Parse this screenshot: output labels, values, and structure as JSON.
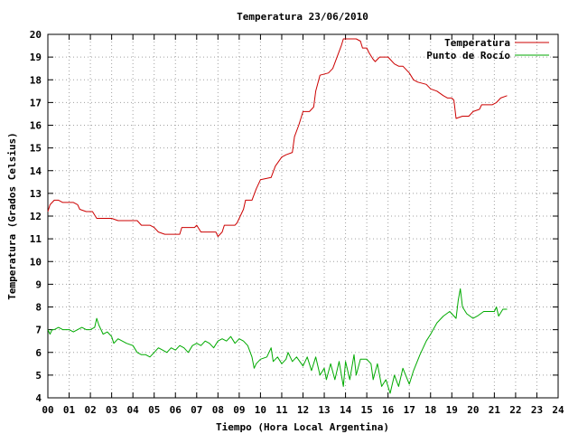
{
  "chart_data": {
    "type": "line",
    "title": "Temperatura 23/06/2010",
    "xlabel": "Tiempo (Hora Local Argentina)",
    "ylabel": "Temperatura (Grados Celsius)",
    "xlim": [
      0,
      24
    ],
    "ylim": [
      4,
      20
    ],
    "grid": true,
    "legend_position": "top-right",
    "x_tick_labels": [
      "00",
      "01",
      "02",
      "03",
      "04",
      "05",
      "06",
      "07",
      "08",
      "09",
      "10",
      "11",
      "12",
      "13",
      "14",
      "15",
      "16",
      "17",
      "18",
      "19",
      "20",
      "21",
      "22",
      "23",
      "24"
    ],
    "y_tick_labels": [
      "4",
      "5",
      "6",
      "7",
      "8",
      "9",
      "10",
      "11",
      "12",
      "13",
      "14",
      "15",
      "16",
      "17",
      "18",
      "19",
      "20"
    ],
    "series": [
      {
        "name": "Temperatura",
        "color": "#cc0000",
        "points": [
          [
            0.0,
            12.2
          ],
          [
            0.1,
            12.5
          ],
          [
            0.3,
            12.7
          ],
          [
            0.5,
            12.7
          ],
          [
            0.7,
            12.6
          ],
          [
            1.0,
            12.6
          ],
          [
            1.2,
            12.6
          ],
          [
            1.4,
            12.5
          ],
          [
            1.5,
            12.3
          ],
          [
            1.8,
            12.2
          ],
          [
            2.1,
            12.2
          ],
          [
            2.3,
            11.9
          ],
          [
            2.5,
            11.9
          ],
          [
            3.0,
            11.9
          ],
          [
            3.3,
            11.8
          ],
          [
            3.6,
            11.8
          ],
          [
            4.0,
            11.8
          ],
          [
            4.2,
            11.8
          ],
          [
            4.4,
            11.6
          ],
          [
            4.8,
            11.6
          ],
          [
            5.0,
            11.5
          ],
          [
            5.2,
            11.3
          ],
          [
            5.5,
            11.2
          ],
          [
            5.9,
            11.2
          ],
          [
            6.2,
            11.2
          ],
          [
            6.3,
            11.5
          ],
          [
            6.9,
            11.5
          ],
          [
            7.0,
            11.6
          ],
          [
            7.2,
            11.3
          ],
          [
            7.5,
            11.3
          ],
          [
            7.9,
            11.3
          ],
          [
            8.0,
            11.1
          ],
          [
            8.2,
            11.3
          ],
          [
            8.3,
            11.6
          ],
          [
            8.8,
            11.6
          ],
          [
            8.9,
            11.7
          ],
          [
            9.2,
            12.3
          ],
          [
            9.3,
            12.7
          ],
          [
            9.6,
            12.7
          ],
          [
            9.8,
            13.2
          ],
          [
            10.0,
            13.6
          ],
          [
            10.5,
            13.7
          ],
          [
            10.7,
            14.2
          ],
          [
            11.0,
            14.6
          ],
          [
            11.2,
            14.7
          ],
          [
            11.5,
            14.8
          ],
          [
            11.6,
            15.5
          ],
          [
            11.8,
            16.0
          ],
          [
            12.0,
            16.6
          ],
          [
            12.3,
            16.6
          ],
          [
            12.5,
            16.8
          ],
          [
            12.6,
            17.5
          ],
          [
            12.8,
            18.2
          ],
          [
            13.2,
            18.3
          ],
          [
            13.4,
            18.5
          ],
          [
            13.6,
            19.0
          ],
          [
            13.8,
            19.5
          ],
          [
            13.9,
            19.8
          ],
          [
            14.5,
            19.8
          ],
          [
            14.7,
            19.7
          ],
          [
            14.8,
            19.4
          ],
          [
            15.0,
            19.4
          ],
          [
            15.1,
            19.2
          ],
          [
            15.3,
            18.9
          ],
          [
            15.4,
            18.8
          ],
          [
            15.6,
            19.0
          ],
          [
            16.0,
            19.0
          ],
          [
            16.1,
            18.9
          ],
          [
            16.3,
            18.7
          ],
          [
            16.5,
            18.6
          ],
          [
            16.7,
            18.6
          ],
          [
            17.0,
            18.3
          ],
          [
            17.2,
            18.0
          ],
          [
            17.4,
            17.9
          ],
          [
            17.8,
            17.8
          ],
          [
            18.0,
            17.6
          ],
          [
            18.3,
            17.5
          ],
          [
            18.6,
            17.3
          ],
          [
            18.8,
            17.2
          ],
          [
            19.0,
            17.2
          ],
          [
            19.1,
            17.1
          ],
          [
            19.2,
            16.3
          ],
          [
            19.5,
            16.4
          ],
          [
            19.8,
            16.4
          ],
          [
            20.0,
            16.6
          ],
          [
            20.3,
            16.7
          ],
          [
            20.4,
            16.9
          ],
          [
            20.9,
            16.9
          ],
          [
            21.1,
            17.0
          ],
          [
            21.3,
            17.2
          ],
          [
            21.6,
            17.3
          ]
        ]
      },
      {
        "name": "Punto de Rocío",
        "color": "#00aa00",
        "points": [
          [
            0.0,
            7.0
          ],
          [
            0.1,
            6.8
          ],
          [
            0.2,
            7.0
          ],
          [
            0.3,
            7.0
          ],
          [
            0.5,
            7.1
          ],
          [
            0.7,
            7.0
          ],
          [
            1.0,
            7.0
          ],
          [
            1.2,
            6.9
          ],
          [
            1.4,
            7.0
          ],
          [
            1.6,
            7.1
          ],
          [
            1.8,
            7.0
          ],
          [
            2.0,
            7.0
          ],
          [
            2.2,
            7.1
          ],
          [
            2.3,
            7.5
          ],
          [
            2.4,
            7.2
          ],
          [
            2.6,
            6.8
          ],
          [
            2.8,
            6.9
          ],
          [
            3.0,
            6.7
          ],
          [
            3.1,
            6.4
          ],
          [
            3.3,
            6.6
          ],
          [
            3.5,
            6.5
          ],
          [
            3.7,
            6.4
          ],
          [
            4.0,
            6.3
          ],
          [
            4.2,
            6.0
          ],
          [
            4.4,
            5.9
          ],
          [
            4.6,
            5.9
          ],
          [
            4.8,
            5.8
          ],
          [
            5.0,
            6.0
          ],
          [
            5.2,
            6.2
          ],
          [
            5.4,
            6.1
          ],
          [
            5.6,
            6.0
          ],
          [
            5.8,
            6.2
          ],
          [
            6.0,
            6.1
          ],
          [
            6.2,
            6.3
          ],
          [
            6.4,
            6.2
          ],
          [
            6.6,
            6.0
          ],
          [
            6.8,
            6.3
          ],
          [
            7.0,
            6.4
          ],
          [
            7.2,
            6.3
          ],
          [
            7.4,
            6.5
          ],
          [
            7.6,
            6.4
          ],
          [
            7.8,
            6.2
          ],
          [
            8.0,
            6.5
          ],
          [
            8.2,
            6.6
          ],
          [
            8.4,
            6.5
          ],
          [
            8.6,
            6.7
          ],
          [
            8.8,
            6.4
          ],
          [
            9.0,
            6.6
          ],
          [
            9.2,
            6.5
          ],
          [
            9.4,
            6.3
          ],
          [
            9.6,
            5.8
          ],
          [
            9.7,
            5.3
          ],
          [
            9.8,
            5.5
          ],
          [
            10.0,
            5.7
          ],
          [
            10.3,
            5.8
          ],
          [
            10.5,
            6.2
          ],
          [
            10.6,
            5.6
          ],
          [
            10.8,
            5.8
          ],
          [
            11.0,
            5.5
          ],
          [
            11.2,
            5.7
          ],
          [
            11.3,
            6.0
          ],
          [
            11.5,
            5.6
          ],
          [
            11.7,
            5.8
          ],
          [
            12.0,
            5.4
          ],
          [
            12.2,
            5.8
          ],
          [
            12.4,
            5.2
          ],
          [
            12.6,
            5.8
          ],
          [
            12.8,
            5.0
          ],
          [
            13.0,
            5.3
          ],
          [
            13.1,
            4.8
          ],
          [
            13.3,
            5.5
          ],
          [
            13.5,
            4.8
          ],
          [
            13.7,
            5.6
          ],
          [
            13.9,
            4.5
          ],
          [
            14.0,
            5.6
          ],
          [
            14.2,
            4.8
          ],
          [
            14.4,
            5.9
          ],
          [
            14.5,
            5.0
          ],
          [
            14.7,
            5.7
          ],
          [
            15.0,
            5.7
          ],
          [
            15.2,
            5.5
          ],
          [
            15.3,
            4.8
          ],
          [
            15.5,
            5.5
          ],
          [
            15.7,
            4.5
          ],
          [
            15.9,
            4.8
          ],
          [
            16.1,
            4.2
          ],
          [
            16.3,
            5.0
          ],
          [
            16.5,
            4.5
          ],
          [
            16.7,
            5.3
          ],
          [
            17.0,
            4.6
          ],
          [
            17.2,
            5.2
          ],
          [
            17.5,
            5.9
          ],
          [
            17.8,
            6.5
          ],
          [
            18.0,
            6.8
          ],
          [
            18.3,
            7.3
          ],
          [
            18.6,
            7.6
          ],
          [
            18.9,
            7.8
          ],
          [
            19.2,
            7.5
          ],
          [
            19.3,
            8.3
          ],
          [
            19.4,
            8.8
          ],
          [
            19.5,
            8.0
          ],
          [
            19.7,
            7.7
          ],
          [
            20.0,
            7.5
          ],
          [
            20.2,
            7.6
          ],
          [
            20.5,
            7.8
          ],
          [
            20.8,
            7.8
          ],
          [
            21.0,
            7.8
          ],
          [
            21.1,
            8.0
          ],
          [
            21.2,
            7.6
          ],
          [
            21.4,
            7.9
          ],
          [
            21.6,
            7.9
          ]
        ]
      }
    ]
  }
}
